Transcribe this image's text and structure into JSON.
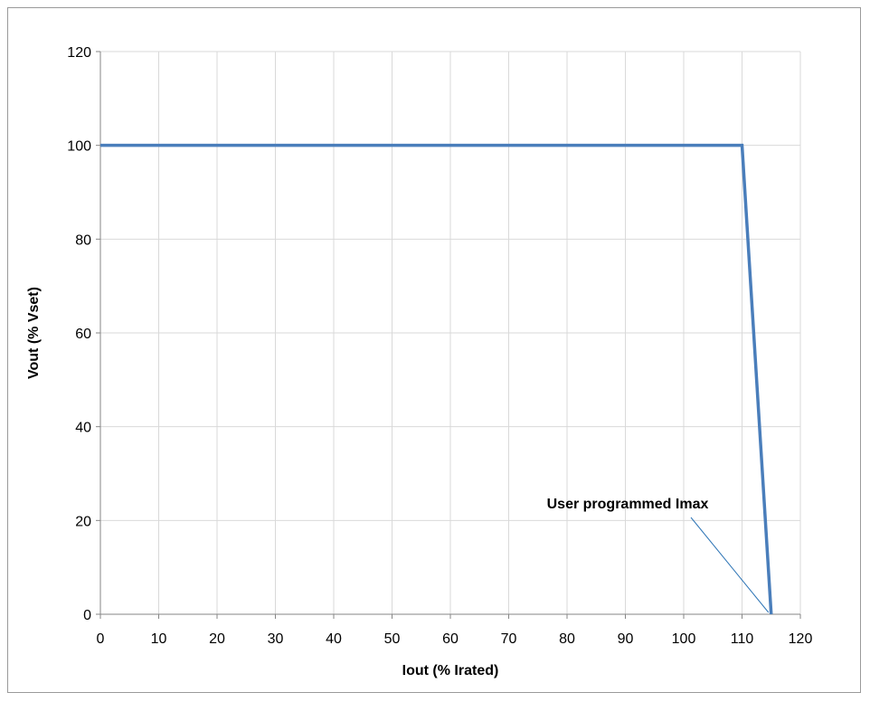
{
  "chart_data": {
    "type": "line",
    "title": "",
    "xlabel": "Iout (% Irated)",
    "ylabel": "Vout (% Vset)",
    "xlim": [
      0,
      120
    ],
    "ylim": [
      0,
      120
    ],
    "x_ticks": [
      0,
      10,
      20,
      30,
      40,
      50,
      60,
      70,
      80,
      90,
      100,
      110,
      120
    ],
    "y_ticks": [
      0,
      20,
      40,
      60,
      80,
      100,
      120
    ],
    "grid": true,
    "series": [
      {
        "x": [
          0,
          110,
          115
        ],
        "y": [
          100,
          100,
          0
        ]
      }
    ],
    "annotations": [
      {
        "text": "User programmed Imax",
        "x": 115,
        "y": 0
      }
    ],
    "colors": {
      "line": "#4a7ebb",
      "grid": "#d9d9d9",
      "axis": "#868686",
      "annotation_line": "#2e75b6"
    }
  }
}
